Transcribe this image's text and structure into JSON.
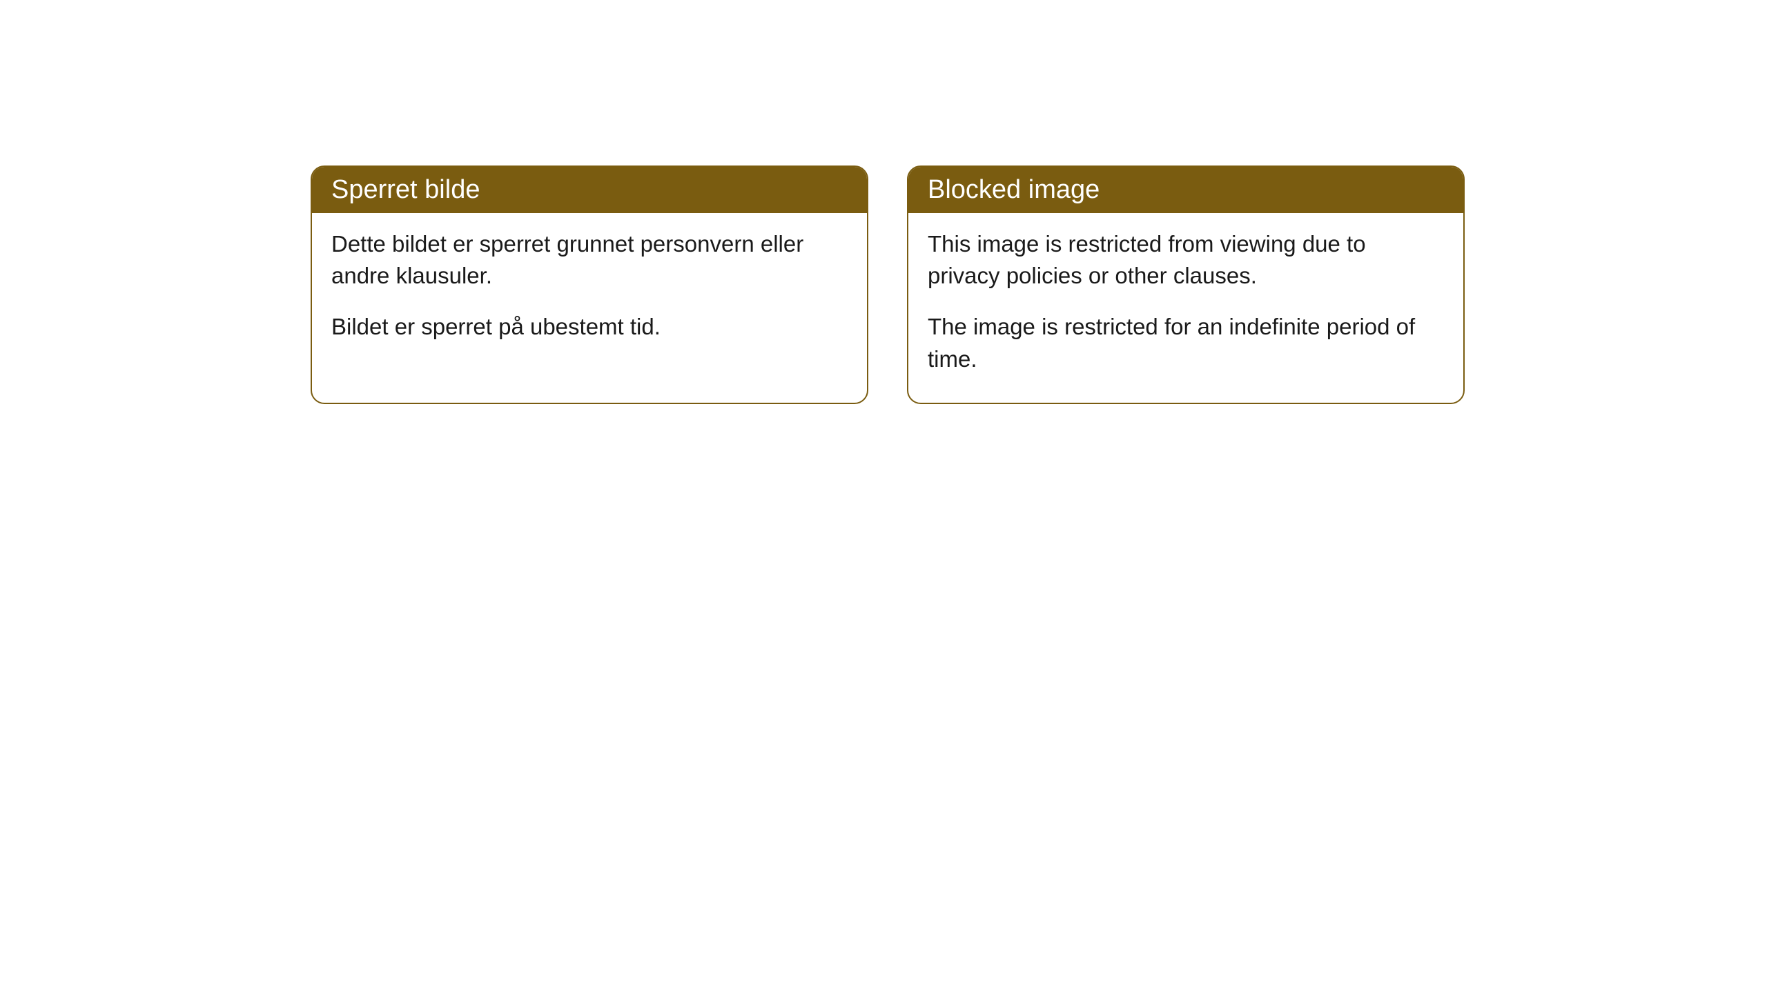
{
  "cards": [
    {
      "title": "Sperret bilde",
      "paragraph1": "Dette bildet er sperret grunnet personvern eller andre klausuler.",
      "paragraph2": "Bildet er sperret på ubestemt tid."
    },
    {
      "title": "Blocked image",
      "paragraph1": "This image is restricted from viewing due to privacy policies or other clauses.",
      "paragraph2": "The image is restricted for an indefinite period of time."
    }
  ],
  "style": {
    "header_background_color": "#7a5c10",
    "header_text_color": "#ffffff",
    "border_color": "#7a5c10",
    "body_background_color": "#ffffff",
    "body_text_color": "#1a1a1a",
    "border_radius": 20,
    "header_font_size": 38,
    "body_font_size": 33
  }
}
